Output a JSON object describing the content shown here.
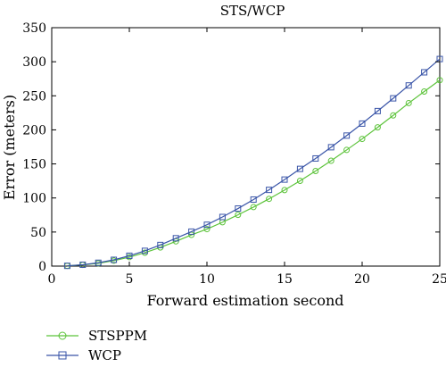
{
  "chart_data": {
    "type": "line",
    "title": "STS/WCP",
    "xlabel": "Forward estimation second",
    "ylabel": "Error (meters)",
    "xlim": [
      0,
      25
    ],
    "ylim": [
      0,
      350
    ],
    "xticks": [
      0,
      5,
      10,
      15,
      20,
      25
    ],
    "yticks": [
      0,
      50,
      100,
      150,
      200,
      250,
      300,
      350
    ],
    "grid": false,
    "legend_position": "bottom-left",
    "x": [
      1,
      2,
      3,
      4,
      5,
      6,
      7,
      8,
      9,
      10,
      11,
      12,
      13,
      14,
      15,
      16,
      17,
      18,
      19,
      20,
      21,
      22,
      23,
      24,
      25
    ],
    "series": [
      {
        "name": "STSPPM",
        "color": "#5cc33a",
        "marker": "circle",
        "values": [
          0.4,
          1.8,
          4.1,
          8.0,
          13.2,
          19.7,
          27.4,
          36.3,
          45.8,
          54.3,
          64.4,
          75.2,
          86.6,
          98.7,
          111.6,
          125.2,
          139.6,
          154.6,
          170.5,
          186.7,
          203.7,
          221.2,
          239.3,
          256.3,
          273.0
        ]
      },
      {
        "name": "WCP",
        "color": "#3a55a8",
        "marker": "square",
        "values": [
          0.4,
          2.0,
          4.9,
          9.2,
          15.2,
          22.4,
          31.0,
          40.9,
          50.6,
          60.7,
          72.1,
          84.5,
          97.7,
          111.9,
          127.0,
          142.7,
          158.0,
          174.5,
          191.6,
          209.2,
          227.6,
          246.3,
          265.2,
          284.5,
          304.0
        ]
      }
    ]
  }
}
